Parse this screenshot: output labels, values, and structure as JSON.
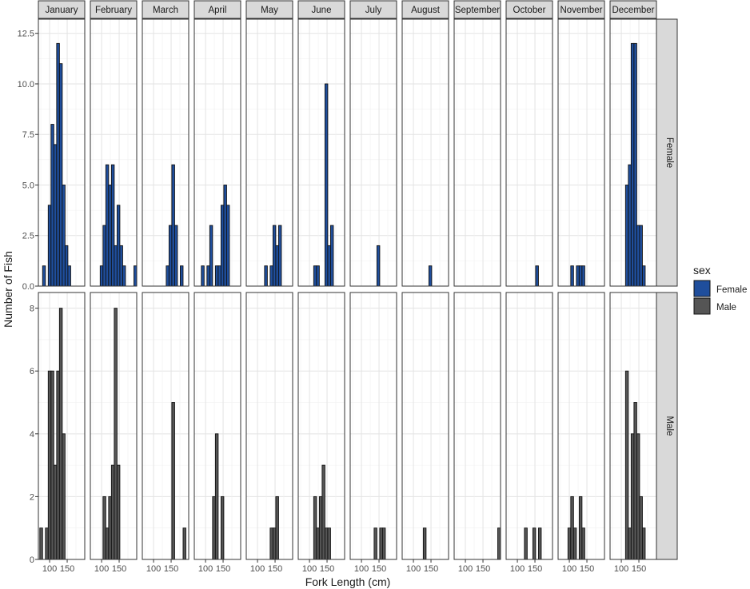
{
  "chart_data": {
    "type": "bar",
    "xlabel": "Fork Length (cm)",
    "ylabel": "Number of Fish",
    "months": [
      "January",
      "February",
      "March",
      "April",
      "May",
      "June",
      "July",
      "August",
      "September",
      "October",
      "November",
      "December"
    ],
    "rows": [
      "Female",
      "Male"
    ],
    "x_ticks": [
      "100",
      "150"
    ],
    "x_tick_values": [
      100,
      150
    ],
    "xlim": [
      68,
      200
    ],
    "bin_width": 8,
    "female_yticks": [
      "0.0",
      "2.5",
      "5.0",
      "7.5",
      "10.0",
      "12.5"
    ],
    "male_yticks": [
      "0",
      "2",
      "4",
      "6",
      "8"
    ],
    "female_ylim": [
      0,
      13.2
    ],
    "male_ylim": [
      0,
      8.5
    ],
    "legend": {
      "title": "sex",
      "entries": [
        "Female",
        "Male"
      ],
      "position": "right"
    },
    "colors": {
      "Female": "#1f4e9c",
      "Male": "#555555"
    },
    "grid": true,
    "female": [
      [
        {
          "x": 84,
          "y": 1
        },
        {
          "x": 100,
          "y": 4
        },
        {
          "x": 108,
          "y": 8
        },
        {
          "x": 116,
          "y": 7
        },
        {
          "x": 124,
          "y": 12
        },
        {
          "x": 132,
          "y": 11
        },
        {
          "x": 140,
          "y": 5
        },
        {
          "x": 148,
          "y": 2
        },
        {
          "x": 156,
          "y": 1
        }
      ],
      [
        {
          "x": 100,
          "y": 1
        },
        {
          "x": 108,
          "y": 3
        },
        {
          "x": 116,
          "y": 6
        },
        {
          "x": 124,
          "y": 5
        },
        {
          "x": 132,
          "y": 6
        },
        {
          "x": 140,
          "y": 2
        },
        {
          "x": 148,
          "y": 4
        },
        {
          "x": 156,
          "y": 2
        },
        {
          "x": 164,
          "y": 1
        },
        {
          "x": 196,
          "y": 1
        }
      ],
      [
        {
          "x": 140,
          "y": 1
        },
        {
          "x": 148,
          "y": 3
        },
        {
          "x": 156,
          "y": 6
        },
        {
          "x": 164,
          "y": 3
        },
        {
          "x": 180,
          "y": 1
        }
      ],
      [
        {
          "x": 92,
          "y": 1
        },
        {
          "x": 108,
          "y": 1
        },
        {
          "x": 116,
          "y": 3
        },
        {
          "x": 132,
          "y": 1
        },
        {
          "x": 140,
          "y": 1
        },
        {
          "x": 148,
          "y": 4
        },
        {
          "x": 156,
          "y": 5
        },
        {
          "x": 164,
          "y": 4
        }
      ],
      [
        {
          "x": 124,
          "y": 1
        },
        {
          "x": 140,
          "y": 1
        },
        {
          "x": 148,
          "y": 3
        },
        {
          "x": 156,
          "y": 2
        },
        {
          "x": 164,
          "y": 3
        }
      ],
      [
        {
          "x": 116,
          "y": 1
        },
        {
          "x": 124,
          "y": 1
        },
        {
          "x": 148,
          "y": 10
        },
        {
          "x": 156,
          "y": 2
        },
        {
          "x": 164,
          "y": 3
        }
      ],
      [
        {
          "x": 148,
          "y": 2
        }
      ],
      [
        {
          "x": 148,
          "y": 1
        }
      ],
      [],
      [
        {
          "x": 156,
          "y": 1
        }
      ],
      [
        {
          "x": 108,
          "y": 1
        },
        {
          "x": 124,
          "y": 1
        },
        {
          "x": 132,
          "y": 1
        },
        {
          "x": 140,
          "y": 1
        }
      ],
      [
        {
          "x": 116,
          "y": 5
        },
        {
          "x": 124,
          "y": 6
        },
        {
          "x": 132,
          "y": 12
        },
        {
          "x": 140,
          "y": 12
        },
        {
          "x": 148,
          "y": 3
        },
        {
          "x": 156,
          "y": 3
        },
        {
          "x": 164,
          "y": 1
        }
      ]
    ],
    "male": [
      [
        {
          "x": 76,
          "y": 1
        },
        {
          "x": 92,
          "y": 1
        },
        {
          "x": 100,
          "y": 6
        },
        {
          "x": 108,
          "y": 6
        },
        {
          "x": 116,
          "y": 3
        },
        {
          "x": 124,
          "y": 6
        },
        {
          "x": 132,
          "y": 8
        },
        {
          "x": 140,
          "y": 4
        }
      ],
      [
        {
          "x": 108,
          "y": 2
        },
        {
          "x": 116,
          "y": 1
        },
        {
          "x": 124,
          "y": 2
        },
        {
          "x": 132,
          "y": 3
        },
        {
          "x": 140,
          "y": 8
        },
        {
          "x": 148,
          "y": 3
        }
      ],
      [
        {
          "x": 156,
          "y": 5
        },
        {
          "x": 188,
          "y": 1
        }
      ],
      [
        {
          "x": 124,
          "y": 2
        },
        {
          "x": 132,
          "y": 4
        },
        {
          "x": 148,
          "y": 2
        }
      ],
      [
        {
          "x": 140,
          "y": 1
        },
        {
          "x": 148,
          "y": 1
        },
        {
          "x": 156,
          "y": 2
        }
      ],
      [
        {
          "x": 116,
          "y": 2
        },
        {
          "x": 124,
          "y": 1
        },
        {
          "x": 132,
          "y": 2
        },
        {
          "x": 140,
          "y": 3
        },
        {
          "x": 148,
          "y": 1
        },
        {
          "x": 156,
          "y": 1
        }
      ],
      [
        {
          "x": 140,
          "y": 1
        },
        {
          "x": 156,
          "y": 1
        },
        {
          "x": 164,
          "y": 1
        }
      ],
      [
        {
          "x": 132,
          "y": 1
        }
      ],
      [
        {
          "x": 196,
          "y": 1
        }
      ],
      [
        {
          "x": 124,
          "y": 1
        },
        {
          "x": 148,
          "y": 1
        },
        {
          "x": 164,
          "y": 1
        }
      ],
      [
        {
          "x": 100,
          "y": 1
        },
        {
          "x": 108,
          "y": 2
        },
        {
          "x": 116,
          "y": 1
        },
        {
          "x": 132,
          "y": 2
        },
        {
          "x": 140,
          "y": 1
        }
      ],
      [
        {
          "x": 116,
          "y": 6
        },
        {
          "x": 124,
          "y": 1
        },
        {
          "x": 132,
          "y": 4
        },
        {
          "x": 140,
          "y": 5
        },
        {
          "x": 148,
          "y": 4
        },
        {
          "x": 156,
          "y": 2
        },
        {
          "x": 164,
          "y": 1
        }
      ]
    ]
  }
}
